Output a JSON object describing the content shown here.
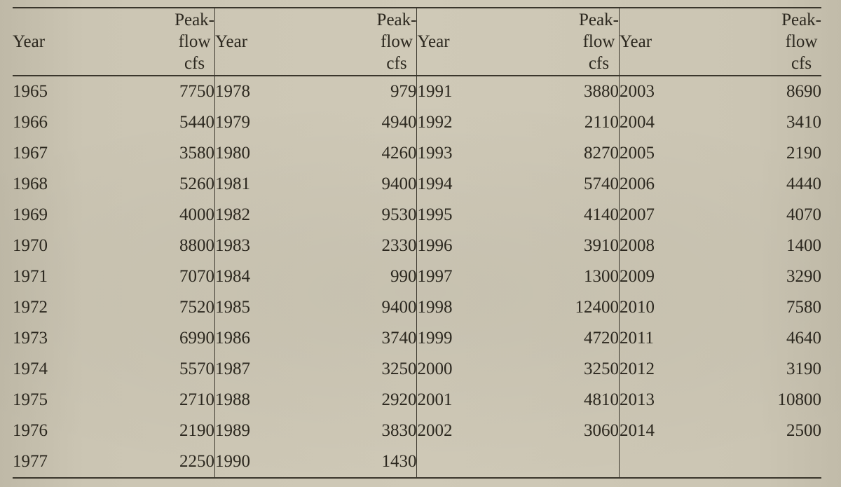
{
  "table": {
    "type": "table",
    "background_color": "#cbc5b3",
    "text_color": "#2c281f",
    "rule_color": "#3a362c",
    "font_family": "Times New Roman",
    "cell_fontsize_pt": 19,
    "header": {
      "year_label": "Year",
      "flow_label_line1": "Peak-",
      "flow_label_line2": "flow",
      "flow_label_line3": "cfs"
    },
    "column_pairs": 4,
    "rows": [
      [
        {
          "year": "1965",
          "flow": "7750"
        },
        {
          "year": "1978",
          "flow": "979"
        },
        {
          "year": "1991",
          "flow": "3880"
        },
        {
          "year": "2003",
          "flow": "8690"
        }
      ],
      [
        {
          "year": "1966",
          "flow": "5440"
        },
        {
          "year": "1979",
          "flow": "4940"
        },
        {
          "year": "1992",
          "flow": "2110"
        },
        {
          "year": "2004",
          "flow": "3410"
        }
      ],
      [
        {
          "year": "1967",
          "flow": "3580"
        },
        {
          "year": "1980",
          "flow": "4260"
        },
        {
          "year": "1993",
          "flow": "8270"
        },
        {
          "year": "2005",
          "flow": "2190"
        }
      ],
      [
        {
          "year": "1968",
          "flow": "5260"
        },
        {
          "year": "1981",
          "flow": "9400"
        },
        {
          "year": "1994",
          "flow": "5740"
        },
        {
          "year": "2006",
          "flow": "4440"
        }
      ],
      [
        {
          "year": "1969",
          "flow": "4000"
        },
        {
          "year": "1982",
          "flow": "9530"
        },
        {
          "year": "1995",
          "flow": "4140"
        },
        {
          "year": "2007",
          "flow": "4070"
        }
      ],
      [
        {
          "year": "1970",
          "flow": "8800"
        },
        {
          "year": "1983",
          "flow": "2330"
        },
        {
          "year": "1996",
          "flow": "3910"
        },
        {
          "year": "2008",
          "flow": "1400"
        }
      ],
      [
        {
          "year": "1971",
          "flow": "7070"
        },
        {
          "year": "1984",
          "flow": "990"
        },
        {
          "year": "1997",
          "flow": "1300"
        },
        {
          "year": "2009",
          "flow": "3290"
        }
      ],
      [
        {
          "year": "1972",
          "flow": "7520"
        },
        {
          "year": "1985",
          "flow": "9400"
        },
        {
          "year": "1998",
          "flow": "12400"
        },
        {
          "year": "2010",
          "flow": "7580"
        }
      ],
      [
        {
          "year": "1973",
          "flow": "6990"
        },
        {
          "year": "1986",
          "flow": "3740"
        },
        {
          "year": "1999",
          "flow": "4720"
        },
        {
          "year": "2011",
          "flow": "4640"
        }
      ],
      [
        {
          "year": "1974",
          "flow": "5570"
        },
        {
          "year": "1987",
          "flow": "3250"
        },
        {
          "year": "2000",
          "flow": "3250"
        },
        {
          "year": "2012",
          "flow": "3190"
        }
      ],
      [
        {
          "year": "1975",
          "flow": "2710"
        },
        {
          "year": "1988",
          "flow": "2920"
        },
        {
          "year": "2001",
          "flow": "4810"
        },
        {
          "year": "2013",
          "flow": "10800"
        }
      ],
      [
        {
          "year": "1976",
          "flow": "2190"
        },
        {
          "year": "1989",
          "flow": "3830"
        },
        {
          "year": "2002",
          "flow": "3060"
        },
        {
          "year": "2014",
          "flow": "2500"
        }
      ],
      [
        {
          "year": "1977",
          "flow": "2250"
        },
        {
          "year": "1990",
          "flow": "1430"
        },
        {
          "year": "",
          "flow": ""
        },
        {
          "year": "",
          "flow": ""
        }
      ]
    ]
  }
}
